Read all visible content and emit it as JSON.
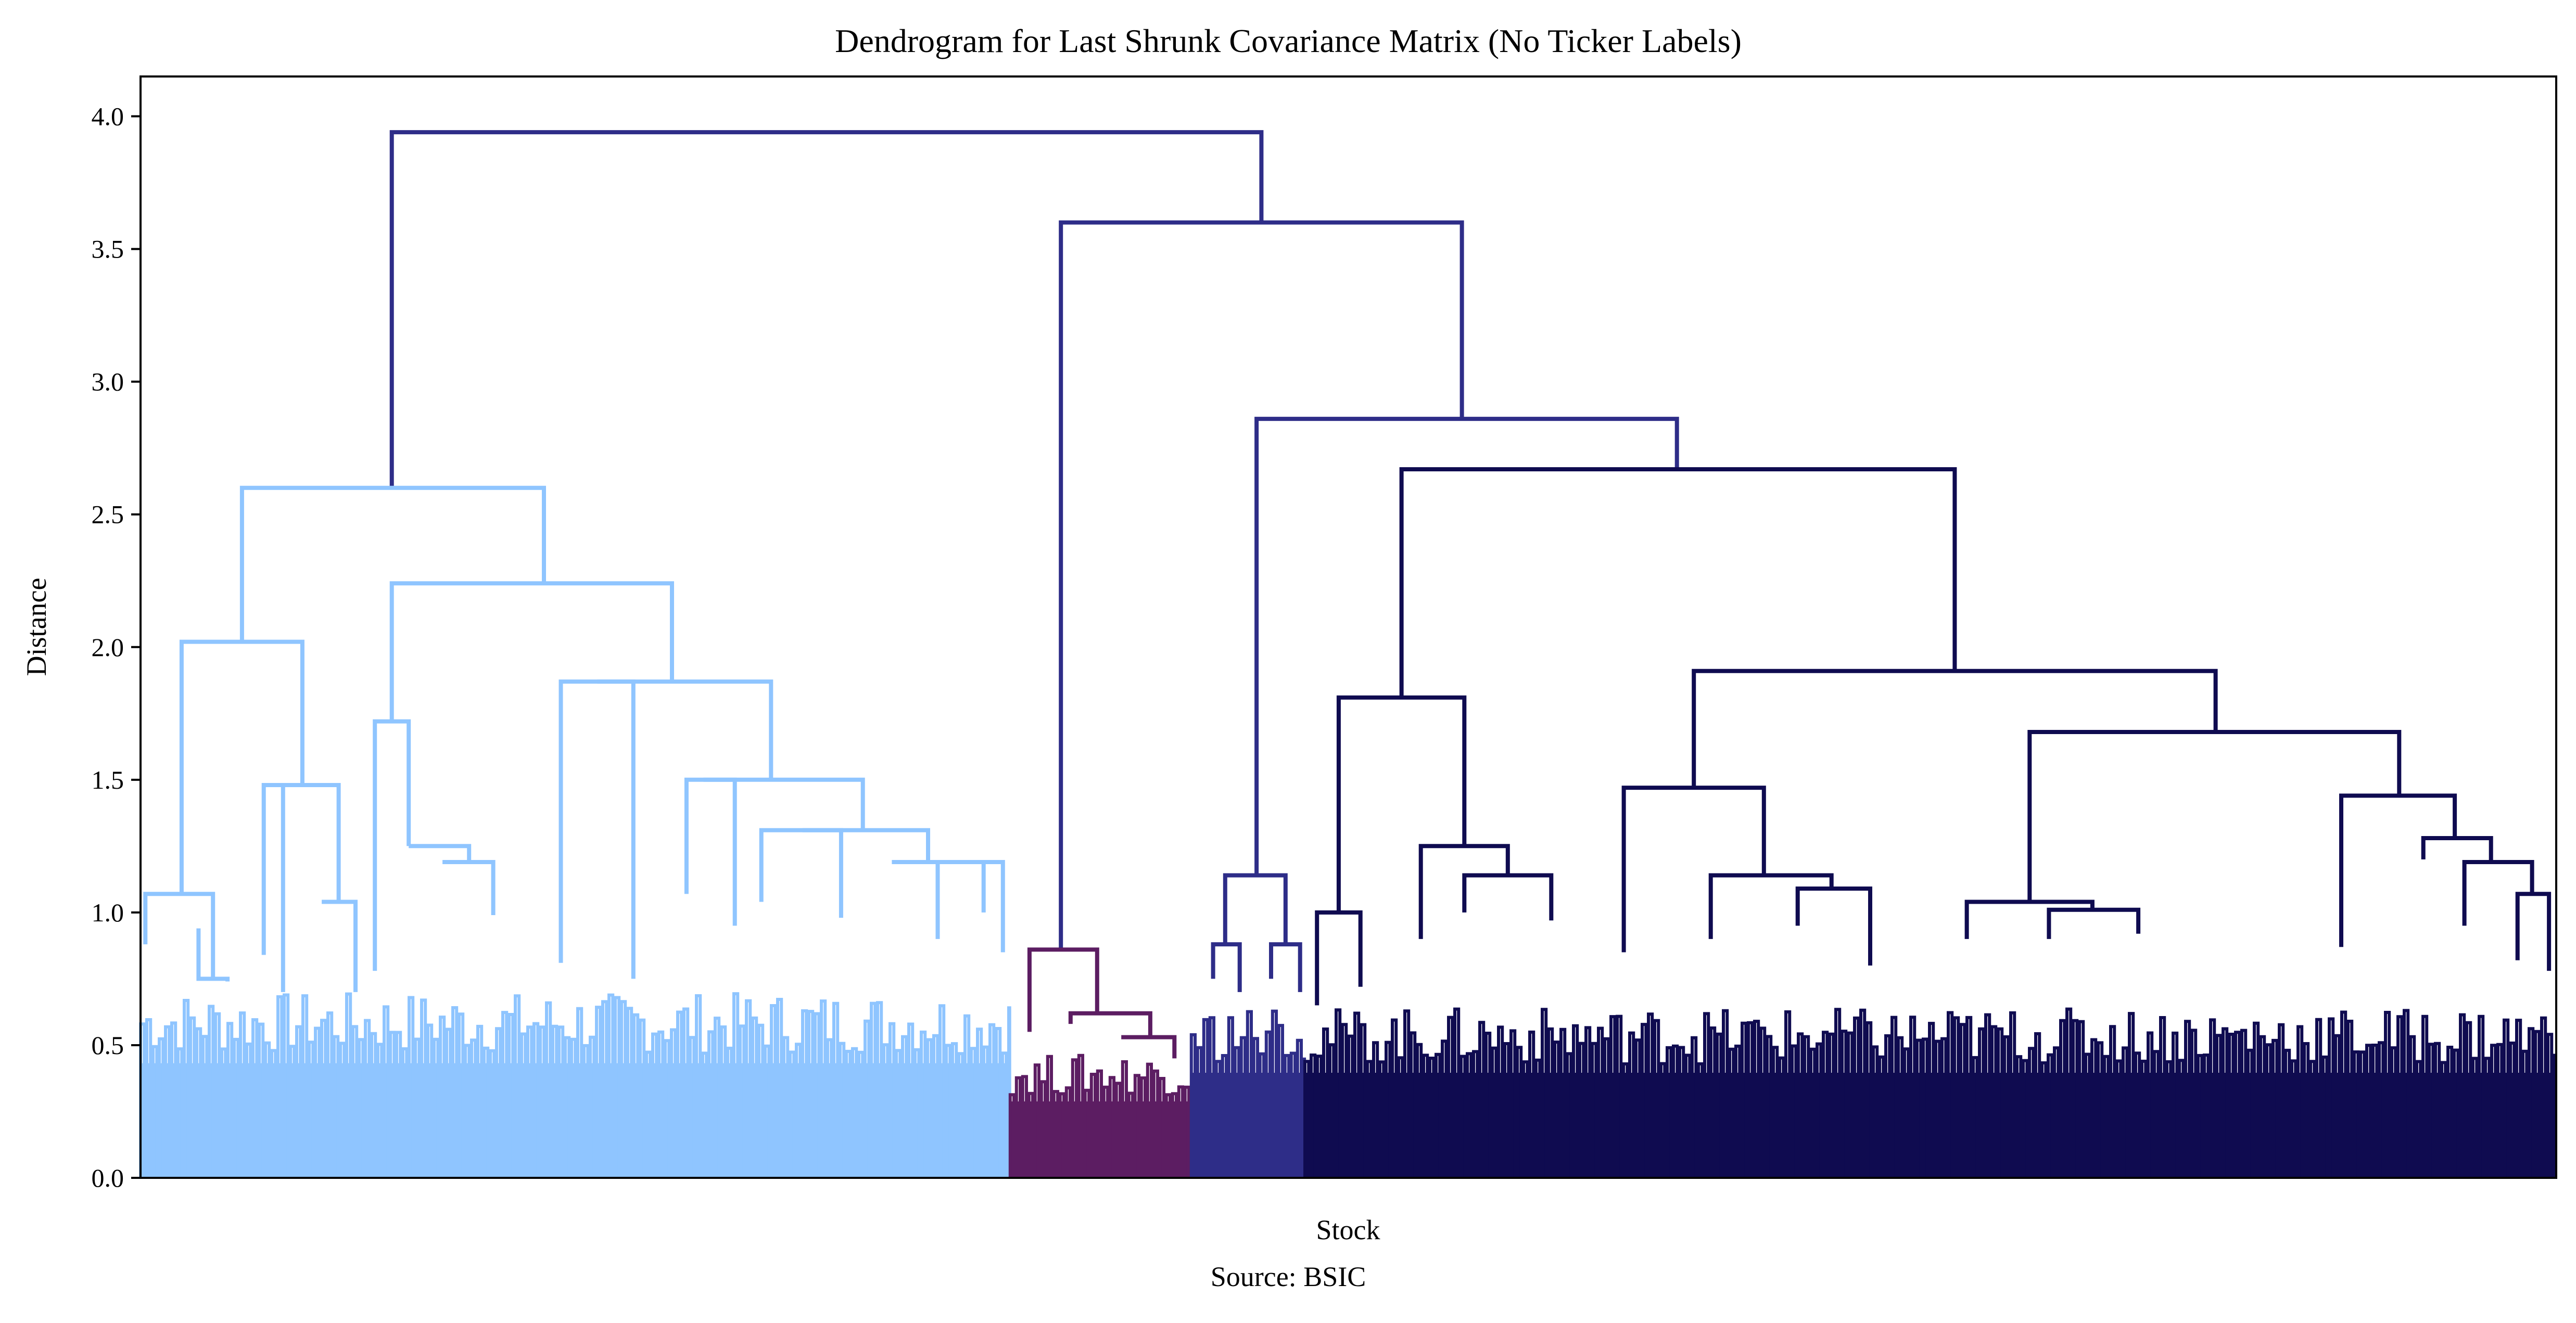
{
  "chart_data": {
    "type": "dendrogram",
    "title": "Dendrogram for Last Shrunk Covariance Matrix (No Ticker Labels)",
    "xlabel": "Stock",
    "ylabel": "Distance",
    "source": "Source: BSIC",
    "ylim": [
      0,
      4.15
    ],
    "yticks": [
      {
        "value": 0.0,
        "label": "0.0"
      },
      {
        "value": 0.5,
        "label": "0.5"
      },
      {
        "value": 1.0,
        "label": "1.0"
      },
      {
        "value": 1.5,
        "label": "1.5"
      },
      {
        "value": 2.0,
        "label": "2.0"
      },
      {
        "value": 2.5,
        "label": "2.5"
      },
      {
        "value": 3.0,
        "label": "3.0"
      },
      {
        "value": 3.5,
        "label": "3.5"
      },
      {
        "value": 4.0,
        "label": "4.0"
      }
    ],
    "leaf_count": 1000,
    "link_color": "#2e2d88",
    "clusters": [
      {
        "name": "cluster-1",
        "color": "#8fc5ff",
        "leaf_start": 0,
        "leaf_end": 360,
        "base_height": 0.6
      },
      {
        "name": "cluster-2",
        "color": "#5c1d62",
        "leaf_start": 360,
        "leaf_end": 435,
        "base_height": 0.4
      },
      {
        "name": "cluster-3",
        "color": "#2e2d88",
        "leaf_start": 435,
        "leaf_end": 482,
        "base_height": 0.55
      },
      {
        "name": "cluster-4",
        "color": "#0f0b50",
        "leaf_start": 482,
        "leaf_end": 1000,
        "base_height": 0.55
      }
    ],
    "links": [
      {
        "x": [
          104,
          104,
          464,
          464
        ],
        "y": [
          2.6,
          3.94,
          3.94,
          3.6
        ],
        "color": "#2e2d88"
      },
      {
        "x": [
          381,
          381,
          547,
          547
        ],
        "y": [
          0.86,
          3.6,
          3.6,
          2.86
        ],
        "color": "#2e2d88"
      },
      {
        "x": [
          462,
          462,
          636,
          636
        ],
        "y": [
          1.14,
          2.86,
          2.86,
          2.67
        ],
        "color": "#2e2d88"
      },
      {
        "x": [
          42,
          42,
          167,
          167
        ],
        "y": [
          2.02,
          2.6,
          2.6,
          2.24
        ],
        "color": "#8fc5ff"
      },
      {
        "x": [
          17,
          17,
          67,
          67
        ],
        "y": [
          1.07,
          2.02,
          2.02,
          1.48
        ],
        "color": "#8fc5ff"
      },
      {
        "x": [
          2,
          2,
          30,
          30
        ],
        "y": [
          0.88,
          1.07,
          1.07,
          0.75
        ],
        "color": "#8fc5ff"
      },
      {
        "x": [
          24,
          24,
          36,
          36
        ],
        "y": [
          0.94,
          0.75,
          0.75,
          0.74
        ],
        "color": "#8fc5ff"
      },
      {
        "x": [
          55,
          55,
          82,
          82
        ],
        "y": [
          1.48,
          1.48,
          1.48,
          1.04
        ],
        "color": "#8fc5ff"
      },
      {
        "x": [
          75,
          75,
          89,
          89
        ],
        "y": [
          1.04,
          1.04,
          1.04,
          0.7
        ],
        "color": "#8fc5ff"
      },
      {
        "x": [
          51,
          51,
          59,
          59
        ],
        "y": [
          0.84,
          1.48,
          1.48,
          0.7
        ],
        "color": "#8fc5ff"
      },
      {
        "x": [
          104,
          104,
          220,
          220
        ],
        "y": [
          1.72,
          2.24,
          2.24,
          1.87
        ],
        "color": "#8fc5ff"
      },
      {
        "x": [
          97,
          97,
          111,
          111
        ],
        "y": [
          0.78,
          1.72,
          1.72,
          1.25
        ],
        "color": "#8fc5ff"
      },
      {
        "x": [
          111,
          111,
          136,
          136
        ],
        "y": [
          1.25,
          1.25,
          1.25,
          1.19
        ],
        "color": "#8fc5ff"
      },
      {
        "x": [
          125,
          125,
          146,
          146
        ],
        "y": [
          1.19,
          1.19,
          1.19,
          0.99
        ],
        "color": "#8fc5ff"
      },
      {
        "x": [
          189,
          189,
          261,
          261
        ],
        "y": [
          1.87,
          1.87,
          1.87,
          1.5
        ],
        "color": "#8fc5ff"
      },
      {
        "x": [
          174,
          174,
          204,
          204
        ],
        "y": [
          0.81,
          1.87,
          1.87,
          0.75
        ],
        "color": "#8fc5ff"
      },
      {
        "x": [
          233,
          233,
          299,
          299
        ],
        "y": [
          1.5,
          1.5,
          1.5,
          1.31
        ],
        "color": "#8fc5ff"
      },
      {
        "x": [
          226,
          226,
          246,
          246
        ],
        "y": [
          1.07,
          1.5,
          1.5,
          0.95
        ],
        "color": "#8fc5ff"
      },
      {
        "x": [
          274,
          274,
          326,
          326
        ],
        "y": [
          1.31,
          1.31,
          1.31,
          1.19
        ],
        "color": "#8fc5ff"
      },
      {
        "x": [
          257,
          257,
          290,
          290
        ],
        "y": [
          1.04,
          1.31,
          1.31,
          0.98
        ],
        "color": "#8fc5ff"
      },
      {
        "x": [
          311,
          311,
          349,
          349
        ],
        "y": [
          1.19,
          1.19,
          1.19,
          1.0
        ],
        "color": "#8fc5ff"
      },
      {
        "x": [
          330,
          330,
          357,
          357
        ],
        "y": [
          0.9,
          1.19,
          1.19,
          0.85
        ],
        "color": "#8fc5ff"
      },
      {
        "x": [
          368,
          368,
          396,
          396
        ],
        "y": [
          0.55,
          0.86,
          0.86,
          0.62
        ],
        "color": "#5c1d62"
      },
      {
        "x": [
          385,
          385,
          418,
          418
        ],
        "y": [
          0.58,
          0.62,
          0.62,
          0.53
        ],
        "color": "#5c1d62"
      },
      {
        "x": [
          406,
          406,
          428,
          428
        ],
        "y": [
          0.53,
          0.53,
          0.53,
          0.45
        ],
        "color": "#5c1d62"
      },
      {
        "x": [
          449,
          449,
          474,
          474
        ],
        "y": [
          0.88,
          1.14,
          1.14,
          0.88
        ],
        "color": "#2e2d88"
      },
      {
        "x": [
          444,
          444,
          455,
          455
        ],
        "y": [
          0.75,
          0.88,
          0.88,
          0.7
        ],
        "color": "#2e2d88"
      },
      {
        "x": [
          468,
          468,
          480,
          480
        ],
        "y": [
          0.75,
          0.88,
          0.88,
          0.7
        ],
        "color": "#2e2d88"
      },
      {
        "x": [
          522,
          522,
          751,
          751
        ],
        "y": [
          1.81,
          2.67,
          2.67,
          1.91
        ],
        "color": "#0f0b50"
      },
      {
        "x": [
          496,
          496,
          548,
          548
        ],
        "y": [
          1.0,
          1.81,
          1.81,
          1.25
        ],
        "color": "#0f0b50"
      },
      {
        "x": [
          487,
          487,
          505,
          505
        ],
        "y": [
          0.65,
          1.0,
          1.0,
          0.72
        ],
        "color": "#0f0b50"
      },
      {
        "x": [
          530,
          530,
          566,
          566
        ],
        "y": [
          0.9,
          1.25,
          1.25,
          1.14
        ],
        "color": "#0f0b50"
      },
      {
        "x": [
          548,
          548,
          584,
          584
        ],
        "y": [
          1.0,
          1.14,
          1.14,
          0.97
        ],
        "color": "#0f0b50"
      },
      {
        "x": [
          643,
          643,
          859,
          859
        ],
        "y": [
          1.47,
          1.91,
          1.91,
          1.68
        ],
        "color": "#0f0b50"
      },
      {
        "x": [
          614,
          614,
          672,
          672
        ],
        "y": [
          0.85,
          1.47,
          1.47,
          1.14
        ],
        "color": "#0f0b50"
      },
      {
        "x": [
          650,
          650,
          700,
          700
        ],
        "y": [
          0.9,
          1.14,
          1.14,
          1.09
        ],
        "color": "#0f0b50"
      },
      {
        "x": [
          686,
          686,
          716,
          716
        ],
        "y": [
          0.95,
          1.09,
          1.09,
          0.8
        ],
        "color": "#0f0b50"
      },
      {
        "x": [
          782,
          782,
          935,
          935
        ],
        "y": [
          1.04,
          1.68,
          1.68,
          1.44
        ],
        "color": "#0f0b50"
      },
      {
        "x": [
          756,
          756,
          808,
          808
        ],
        "y": [
          0.9,
          1.04,
          1.04,
          1.01
        ],
        "color": "#0f0b50"
      },
      {
        "x": [
          790,
          790,
          827,
          827
        ],
        "y": [
          0.9,
          1.01,
          1.01,
          0.92
        ],
        "color": "#0f0b50"
      },
      {
        "x": [
          911,
          911,
          958,
          958
        ],
        "y": [
          0.87,
          1.44,
          1.44,
          1.28
        ],
        "color": "#0f0b50"
      },
      {
        "x": [
          945,
          945,
          973,
          973
        ],
        "y": [
          1.2,
          1.28,
          1.28,
          1.19
        ],
        "color": "#0f0b50"
      },
      {
        "x": [
          962,
          962,
          990,
          990
        ],
        "y": [
          0.95,
          1.19,
          1.19,
          1.07
        ],
        "color": "#0f0b50"
      },
      {
        "x": [
          984,
          984,
          997,
          997
        ],
        "y": [
          0.82,
          1.07,
          1.07,
          0.78
        ],
        "color": "#0f0b50"
      }
    ]
  }
}
